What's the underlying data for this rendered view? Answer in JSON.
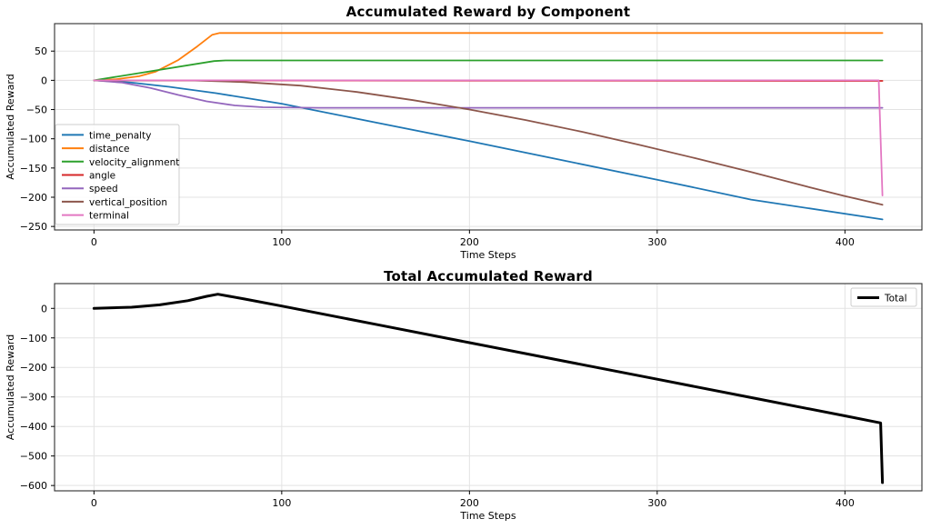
{
  "figure": {
    "background": "#ffffff"
  },
  "chart_data": [
    {
      "type": "line",
      "title": "Accumulated Reward by Component",
      "xlabel": "Time Steps",
      "ylabel": "Accumulated Reward",
      "xlim": [
        -21,
        441
      ],
      "ylim": [
        -256,
        97
      ],
      "xticks": [
        0,
        100,
        200,
        300,
        400
      ],
      "yticks": [
        50,
        0,
        -50,
        -100,
        -150,
        -200,
        -250
      ],
      "grid": true,
      "legend_position": "center-left",
      "series": [
        {
          "name": "time_penalty",
          "color": "#1f77b4",
          "width": 1.8,
          "points": [
            [
              0,
              0
            ],
            [
              20,
              -4
            ],
            [
              40,
              -11
            ],
            [
              65,
              -22
            ],
            [
              100,
              -40
            ],
            [
              150,
              -72
            ],
            [
              200,
              -104
            ],
            [
              250,
              -137
            ],
            [
              300,
              -170
            ],
            [
              350,
              -204
            ],
            [
              420,
              -238
            ]
          ]
        },
        {
          "name": "distance",
          "color": "#ff7f0e",
          "width": 1.8,
          "points": [
            [
              0,
              0
            ],
            [
              12,
              2
            ],
            [
              24,
              7
            ],
            [
              33,
              15
            ],
            [
              45,
              35
            ],
            [
              55,
              58
            ],
            [
              63,
              78
            ],
            [
              67,
              81
            ],
            [
              420,
              81
            ]
          ]
        },
        {
          "name": "velocity_alignment",
          "color": "#2ca02c",
          "width": 1.8,
          "points": [
            [
              0,
              0
            ],
            [
              64,
              33
            ],
            [
              70,
              34
            ],
            [
              420,
              34
            ]
          ]
        },
        {
          "name": "angle",
          "color": "#d62728",
          "width": 1.8,
          "points": [
            [
              0,
              0
            ],
            [
              420,
              -1
            ]
          ]
        },
        {
          "name": "speed",
          "color": "#9467bd",
          "width": 1.8,
          "points": [
            [
              0,
              0
            ],
            [
              15,
              -4
            ],
            [
              30,
              -13
            ],
            [
              45,
              -25
            ],
            [
              60,
              -36
            ],
            [
              75,
              -43
            ],
            [
              90,
              -46
            ],
            [
              120,
              -47
            ],
            [
              420,
              -47
            ]
          ]
        },
        {
          "name": "vertical_position",
          "color": "#8c564b",
          "width": 1.8,
          "points": [
            [
              0,
              0
            ],
            [
              50,
              0
            ],
            [
              80,
              -3
            ],
            [
              110,
              -9
            ],
            [
              140,
              -20
            ],
            [
              170,
              -34
            ],
            [
              200,
              -50
            ],
            [
              230,
              -68
            ],
            [
              260,
              -88
            ],
            [
              290,
              -110
            ],
            [
              320,
              -133
            ],
            [
              350,
              -157
            ],
            [
              380,
              -182
            ],
            [
              400,
              -198
            ],
            [
              420,
              -213
            ]
          ]
        },
        {
          "name": "terminal",
          "color": "#e377c2",
          "width": 1.8,
          "points": [
            [
              0,
              0
            ],
            [
              418,
              0
            ],
            [
              420,
              -197
            ]
          ]
        }
      ]
    },
    {
      "type": "line",
      "title": "Total Accumulated Reward",
      "xlabel": "Time Steps",
      "ylabel": "Accumulated Reward",
      "xlim": [
        -21,
        441
      ],
      "ylim": [
        -618,
        84
      ],
      "xticks": [
        0,
        100,
        200,
        300,
        400
      ],
      "yticks": [
        0,
        -100,
        -200,
        -300,
        -400,
        -500,
        -600
      ],
      "grid": true,
      "legend_position": "upper-right",
      "series": [
        {
          "name": "Total",
          "color": "#000000",
          "width": 3,
          "points": [
            [
              0,
              0
            ],
            [
              20,
              4
            ],
            [
              35,
              12
            ],
            [
              50,
              26
            ],
            [
              60,
              41
            ],
            [
              66,
              48
            ],
            [
              80,
              32
            ],
            [
              100,
              8
            ],
            [
              150,
              -54
            ],
            [
              200,
              -116
            ],
            [
              250,
              -178
            ],
            [
              300,
              -240
            ],
            [
              350,
              -302
            ],
            [
              400,
              -364
            ],
            [
              419,
              -388
            ],
            [
              420,
              -590
            ]
          ]
        }
      ]
    }
  ]
}
